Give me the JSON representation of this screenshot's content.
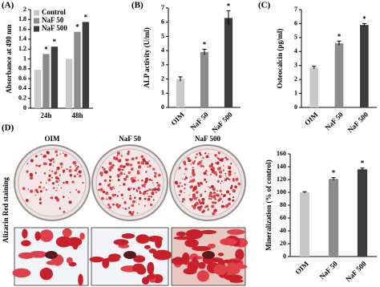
{
  "chart_data": [
    {
      "type": "bar",
      "panel_label": "(A)",
      "ylabel": "Absorbance at 490 nm",
      "categories": [
        "24h",
        "48h"
      ],
      "series": [
        {
          "name": "Control",
          "color": "#c8c8c8",
          "values": [
            0.78,
            1.0
          ],
          "stars": [
            null,
            null
          ]
        },
        {
          "name": "NaF 50",
          "color": "#8c8c8c",
          "values": [
            1.1,
            1.55
          ],
          "stars": [
            "*",
            "*"
          ]
        },
        {
          "name": "NaF 500",
          "color": "#3c3c3c",
          "values": [
            1.25,
            1.75
          ],
          "stars": [
            "*",
            "*"
          ]
        }
      ],
      "ylim": [
        0,
        2
      ],
      "yticks": [
        0,
        0.2,
        0.4,
        0.6,
        0.8,
        1,
        1.2,
        1.4,
        1.6,
        1.8,
        2
      ],
      "legend": "top-left"
    },
    {
      "type": "bar",
      "panel_label": "(B)",
      "ylabel": "ALP activity (U/ml)",
      "categories": [
        "OIM",
        "NaF 50",
        "NaF 500"
      ],
      "values": [
        2.0,
        3.9,
        6.3
      ],
      "errors": [
        0.15,
        0.2,
        0.5
      ],
      "stars": [
        null,
        "*",
        "*"
      ],
      "colors": [
        "#c8c8c8",
        "#8c8c8c",
        "#3c3c3c"
      ],
      "ylim": [
        0,
        7
      ],
      "yticks": [
        0,
        1,
        2,
        3,
        4,
        5,
        6,
        7
      ]
    },
    {
      "type": "bar",
      "panel_label": "(C)",
      "ylabel": "Osteocalcin (pg/ml)",
      "categories": [
        "OIM",
        "NaF 50",
        "NaF 500"
      ],
      "values": [
        2.85,
        4.6,
        5.9
      ],
      "errors": [
        0.1,
        0.15,
        0.1
      ],
      "stars": [
        null,
        "*",
        "*"
      ],
      "colors": [
        "#c8c8c8",
        "#8c8c8c",
        "#3c3c3c"
      ],
      "ylim": [
        0,
        7
      ],
      "yticks": [
        0,
        1,
        2,
        3,
        4,
        5,
        6,
        7
      ]
    },
    {
      "type": "bar",
      "panel_label": "(D)",
      "ylabel": "Mineralization (% of control)",
      "categories": [
        "OIM",
        "NaF 50",
        "NaF 500"
      ],
      "values": [
        100,
        121,
        136
      ],
      "errors": [
        1,
        2,
        2
      ],
      "stars": [
        null,
        "*",
        "*"
      ],
      "colors": [
        "#c8c8c8",
        "#8c8c8c",
        "#3c3c3c"
      ],
      "ylim": [
        0,
        160
      ],
      "yticks": [
        0,
        20,
        40,
        60,
        80,
        100,
        120,
        140,
        160
      ]
    }
  ],
  "staining": {
    "side_label": "Alizarin Red staining",
    "labels": [
      "OIM",
      "NaF 50",
      "NaF 500"
    ]
  }
}
